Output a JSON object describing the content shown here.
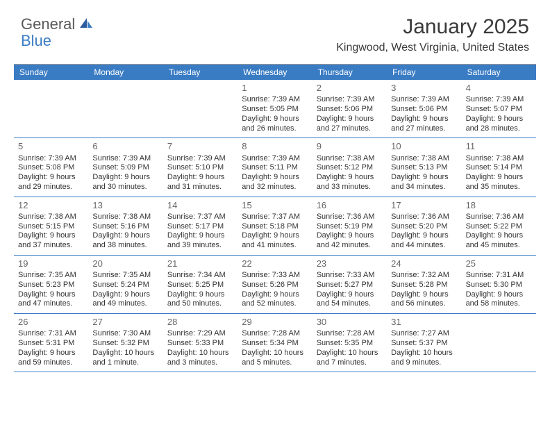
{
  "logo": {
    "part1": "General",
    "part2": "Blue"
  },
  "title": "January 2025",
  "location": "Kingwood, West Virginia, United States",
  "colors": {
    "header_bg": "#3a7cc4",
    "header_text": "#ffffff",
    "border": "#3a7cc4",
    "daynum": "#666666",
    "body_text": "#333333"
  },
  "day_headers": [
    "Sunday",
    "Monday",
    "Tuesday",
    "Wednesday",
    "Thursday",
    "Friday",
    "Saturday"
  ],
  "weeks": [
    [
      null,
      null,
      null,
      {
        "n": "1",
        "sr": "Sunrise: 7:39 AM",
        "ss": "Sunset: 5:05 PM",
        "d1": "Daylight: 9 hours",
        "d2": "and 26 minutes."
      },
      {
        "n": "2",
        "sr": "Sunrise: 7:39 AM",
        "ss": "Sunset: 5:06 PM",
        "d1": "Daylight: 9 hours",
        "d2": "and 27 minutes."
      },
      {
        "n": "3",
        "sr": "Sunrise: 7:39 AM",
        "ss": "Sunset: 5:06 PM",
        "d1": "Daylight: 9 hours",
        "d2": "and 27 minutes."
      },
      {
        "n": "4",
        "sr": "Sunrise: 7:39 AM",
        "ss": "Sunset: 5:07 PM",
        "d1": "Daylight: 9 hours",
        "d2": "and 28 minutes."
      }
    ],
    [
      {
        "n": "5",
        "sr": "Sunrise: 7:39 AM",
        "ss": "Sunset: 5:08 PM",
        "d1": "Daylight: 9 hours",
        "d2": "and 29 minutes."
      },
      {
        "n": "6",
        "sr": "Sunrise: 7:39 AM",
        "ss": "Sunset: 5:09 PM",
        "d1": "Daylight: 9 hours",
        "d2": "and 30 minutes."
      },
      {
        "n": "7",
        "sr": "Sunrise: 7:39 AM",
        "ss": "Sunset: 5:10 PM",
        "d1": "Daylight: 9 hours",
        "d2": "and 31 minutes."
      },
      {
        "n": "8",
        "sr": "Sunrise: 7:39 AM",
        "ss": "Sunset: 5:11 PM",
        "d1": "Daylight: 9 hours",
        "d2": "and 32 minutes."
      },
      {
        "n": "9",
        "sr": "Sunrise: 7:38 AM",
        "ss": "Sunset: 5:12 PM",
        "d1": "Daylight: 9 hours",
        "d2": "and 33 minutes."
      },
      {
        "n": "10",
        "sr": "Sunrise: 7:38 AM",
        "ss": "Sunset: 5:13 PM",
        "d1": "Daylight: 9 hours",
        "d2": "and 34 minutes."
      },
      {
        "n": "11",
        "sr": "Sunrise: 7:38 AM",
        "ss": "Sunset: 5:14 PM",
        "d1": "Daylight: 9 hours",
        "d2": "and 35 minutes."
      }
    ],
    [
      {
        "n": "12",
        "sr": "Sunrise: 7:38 AM",
        "ss": "Sunset: 5:15 PM",
        "d1": "Daylight: 9 hours",
        "d2": "and 37 minutes."
      },
      {
        "n": "13",
        "sr": "Sunrise: 7:38 AM",
        "ss": "Sunset: 5:16 PM",
        "d1": "Daylight: 9 hours",
        "d2": "and 38 minutes."
      },
      {
        "n": "14",
        "sr": "Sunrise: 7:37 AM",
        "ss": "Sunset: 5:17 PM",
        "d1": "Daylight: 9 hours",
        "d2": "and 39 minutes."
      },
      {
        "n": "15",
        "sr": "Sunrise: 7:37 AM",
        "ss": "Sunset: 5:18 PM",
        "d1": "Daylight: 9 hours",
        "d2": "and 41 minutes."
      },
      {
        "n": "16",
        "sr": "Sunrise: 7:36 AM",
        "ss": "Sunset: 5:19 PM",
        "d1": "Daylight: 9 hours",
        "d2": "and 42 minutes."
      },
      {
        "n": "17",
        "sr": "Sunrise: 7:36 AM",
        "ss": "Sunset: 5:20 PM",
        "d1": "Daylight: 9 hours",
        "d2": "and 44 minutes."
      },
      {
        "n": "18",
        "sr": "Sunrise: 7:36 AM",
        "ss": "Sunset: 5:22 PM",
        "d1": "Daylight: 9 hours",
        "d2": "and 45 minutes."
      }
    ],
    [
      {
        "n": "19",
        "sr": "Sunrise: 7:35 AM",
        "ss": "Sunset: 5:23 PM",
        "d1": "Daylight: 9 hours",
        "d2": "and 47 minutes."
      },
      {
        "n": "20",
        "sr": "Sunrise: 7:35 AM",
        "ss": "Sunset: 5:24 PM",
        "d1": "Daylight: 9 hours",
        "d2": "and 49 minutes."
      },
      {
        "n": "21",
        "sr": "Sunrise: 7:34 AM",
        "ss": "Sunset: 5:25 PM",
        "d1": "Daylight: 9 hours",
        "d2": "and 50 minutes."
      },
      {
        "n": "22",
        "sr": "Sunrise: 7:33 AM",
        "ss": "Sunset: 5:26 PM",
        "d1": "Daylight: 9 hours",
        "d2": "and 52 minutes."
      },
      {
        "n": "23",
        "sr": "Sunrise: 7:33 AM",
        "ss": "Sunset: 5:27 PM",
        "d1": "Daylight: 9 hours",
        "d2": "and 54 minutes."
      },
      {
        "n": "24",
        "sr": "Sunrise: 7:32 AM",
        "ss": "Sunset: 5:28 PM",
        "d1": "Daylight: 9 hours",
        "d2": "and 56 minutes."
      },
      {
        "n": "25",
        "sr": "Sunrise: 7:31 AM",
        "ss": "Sunset: 5:30 PM",
        "d1": "Daylight: 9 hours",
        "d2": "and 58 minutes."
      }
    ],
    [
      {
        "n": "26",
        "sr": "Sunrise: 7:31 AM",
        "ss": "Sunset: 5:31 PM",
        "d1": "Daylight: 9 hours",
        "d2": "and 59 minutes."
      },
      {
        "n": "27",
        "sr": "Sunrise: 7:30 AM",
        "ss": "Sunset: 5:32 PM",
        "d1": "Daylight: 10 hours",
        "d2": "and 1 minute."
      },
      {
        "n": "28",
        "sr": "Sunrise: 7:29 AM",
        "ss": "Sunset: 5:33 PM",
        "d1": "Daylight: 10 hours",
        "d2": "and 3 minutes."
      },
      {
        "n": "29",
        "sr": "Sunrise: 7:28 AM",
        "ss": "Sunset: 5:34 PM",
        "d1": "Daylight: 10 hours",
        "d2": "and 5 minutes."
      },
      {
        "n": "30",
        "sr": "Sunrise: 7:28 AM",
        "ss": "Sunset: 5:35 PM",
        "d1": "Daylight: 10 hours",
        "d2": "and 7 minutes."
      },
      {
        "n": "31",
        "sr": "Sunrise: 7:27 AM",
        "ss": "Sunset: 5:37 PM",
        "d1": "Daylight: 10 hours",
        "d2": "and 9 minutes."
      },
      null
    ]
  ]
}
